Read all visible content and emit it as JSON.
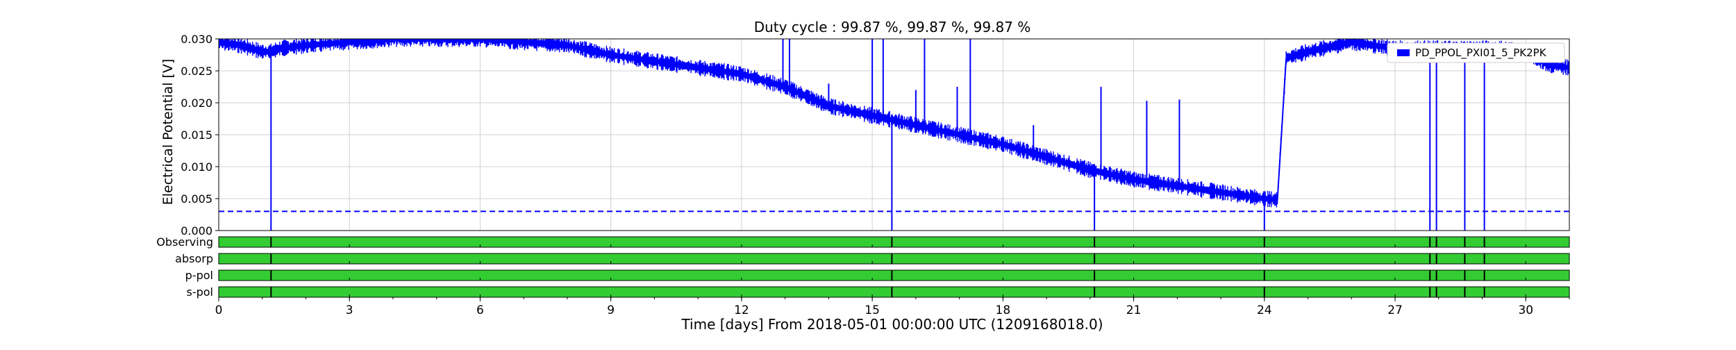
{
  "chart_data": [
    {
      "type": "line",
      "title": "Duty cycle : 99.87 %, 99.87 %, 99.87 %",
      "xlabel": "Time [days] From 2018-05-01 00:00:00 UTC (1209168018.0)",
      "ylabel": "Electrical Potential [V]",
      "xlim": [
        0,
        31
      ],
      "ylim": [
        0,
        0.03
      ],
      "x_ticks": [
        "0",
        "3",
        "6",
        "9",
        "12",
        "15",
        "18",
        "21",
        "24",
        "27",
        "30"
      ],
      "y_ticks": [
        "0.000",
        "0.005",
        "0.010",
        "0.015",
        "0.020",
        "0.025",
        "0.030"
      ],
      "grid": true,
      "legend": "top-right",
      "colors": {
        "series": "#0000ff",
        "threshold": "#0000ff",
        "state": "#33cc33"
      },
      "series": [
        {
          "name": "PD_PPOL_PXI01_5_PK2PK",
          "x": [
            0,
            0.5,
            1.0,
            1.2,
            1.4,
            2.0,
            3.0,
            4.0,
            5.0,
            6.0,
            7.0,
            8.0,
            9.0,
            10.0,
            11.0,
            12.0,
            13.0,
            14.0,
            15.0,
            16.0,
            17.0,
            18.0,
            19.0,
            20.0,
            21.0,
            22.0,
            23.0,
            24.0,
            24.3,
            24.5,
            25.0,
            26.0,
            27.0,
            28.0,
            29.0,
            29.5,
            30.0,
            30.5,
            31.0
          ],
          "y": [
            0.0295,
            0.029,
            0.028,
            0.028,
            0.0285,
            0.029,
            0.0295,
            0.03,
            0.03,
            0.03,
            0.0295,
            0.029,
            0.0275,
            0.0265,
            0.0255,
            0.0245,
            0.0225,
            0.0195,
            0.018,
            0.0165,
            0.015,
            0.0135,
            0.0115,
            0.0095,
            0.008,
            0.007,
            0.006,
            0.005,
            0.0048,
            0.027,
            0.028,
            0.0295,
            0.0285,
            0.0285,
            0.0285,
            0.0285,
            0.028,
            0.026,
            0.0255
          ],
          "spikes": [
            {
              "x": 1.2,
              "y": 0.0
            },
            {
              "x": 15.45,
              "y": 0.0
            },
            {
              "x": 20.1,
              "y": 0.0
            },
            {
              "x": 24.0,
              "y": 0.0
            },
            {
              "x": 12.95,
              "y": 0.03
            },
            {
              "x": 13.1,
              "y": 0.03
            },
            {
              "x": 14.0,
              "y": 0.023
            },
            {
              "x": 15.0,
              "y": 0.03
            },
            {
              "x": 15.25,
              "y": 0.03
            },
            {
              "x": 16.0,
              "y": 0.022
            },
            {
              "x": 16.2,
              "y": 0.03
            },
            {
              "x": 16.95,
              "y": 0.0225
            },
            {
              "x": 17.25,
              "y": 0.03
            },
            {
              "x": 18.7,
              "y": 0.0165
            },
            {
              "x": 20.25,
              "y": 0.0225
            },
            {
              "x": 21.3,
              "y": 0.0203
            },
            {
              "x": 22.05,
              "y": 0.0205
            },
            {
              "x": 27.8,
              "y": 0.0
            },
            {
              "x": 27.95,
              "y": 0.0
            },
            {
              "x": 28.6,
              "y": 0.0
            },
            {
              "x": 29.05,
              "y": 0.0
            }
          ]
        }
      ],
      "threshold": 0.003
    },
    {
      "type": "state_segments",
      "xlim": [
        0,
        31
      ],
      "rows": [
        "Observing",
        "absorp",
        "p-pol",
        "s-pol"
      ],
      "gaps": [
        1.2,
        15.45,
        20.1,
        24.0,
        27.8,
        27.95,
        28.6,
        29.05
      ]
    }
  ]
}
